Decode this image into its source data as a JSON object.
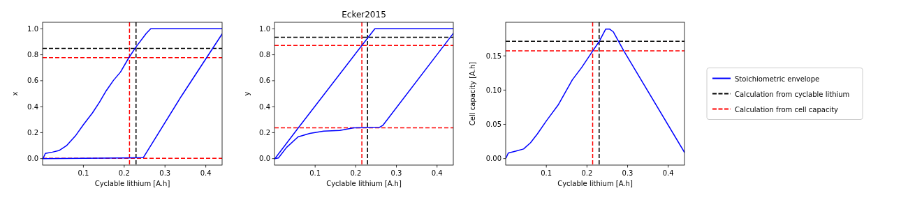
{
  "chart_data": [
    {
      "type": "line",
      "xlabel": "Cyclable lithium [A.h]",
      "ylabel": "x",
      "xlim": [
        0,
        0.44
      ],
      "ylim": [
        -0.05,
        1.05
      ],
      "xticks": [
        0.1,
        0.2,
        0.3,
        0.4
      ],
      "yticks": [
        {
          "value": 0,
          "label": "0.0"
        },
        0.2,
        0.4,
        0.6,
        0.8,
        {
          "value": 1,
          "label": "1.0"
        }
      ],
      "series": [
        {
          "color": "#0000ff",
          "x": [
            0.001,
            0.0067,
            0.024,
            0.041,
            0.0585,
            0.0816,
            0.1,
            0.122,
            0.139,
            0.156,
            0.174,
            0.191,
            0.211,
            0.228,
            0.254,
            0.265,
            0.44
          ],
          "values": [
            0,
            0.04,
            0.05,
            0.063,
            0.099,
            0.18,
            0.261,
            0.351,
            0.432,
            0.523,
            0.604,
            0.667,
            0.775,
            0.856,
            0.964,
            1.0,
            1.0
          ]
        },
        {
          "color": "#0000ff",
          "x": [
            0.001,
            0.2,
            0.247,
            0.34,
            0.44
          ],
          "values": [
            0,
            0.005,
            0.008,
            0.48,
            0.96
          ]
        }
      ],
      "ref_lines": [
        {
          "axis": "x",
          "value": 0.229,
          "color": "#000000",
          "line_style": "dashed"
        },
        {
          "axis": "y",
          "value": 0.849,
          "color": "#000000",
          "line_style": "dashed"
        },
        {
          "axis": "x",
          "value": 0.213,
          "color": "#ff0000",
          "line_style": "dashed"
        },
        {
          "axis": "y",
          "value": 0.778,
          "color": "#ff0000",
          "line_style": "dashed"
        },
        {
          "axis": "y",
          "value": 0.002,
          "color": "#ff0000",
          "line_style": "dashed"
        }
      ]
    },
    {
      "type": "line",
      "title": "Ecker2015",
      "xlabel": "Cyclable lithium [A.h]",
      "ylabel": "y",
      "xlim": [
        0,
        0.44
      ],
      "ylim": [
        -0.05,
        1.05
      ],
      "xticks": [
        0.1,
        0.2,
        0.3,
        0.4
      ],
      "yticks": [
        {
          "value": 0,
          "label": "0.0"
        },
        0.2,
        0.4,
        0.6,
        0.8,
        {
          "value": 1,
          "label": "1.0"
        }
      ],
      "series": [
        {
          "color": "#0000ff",
          "x": [
            0.001,
            0.057,
            0.215,
            0.247,
            0.44
          ],
          "values": [
            0,
            0.23,
            0.872,
            1.0,
            1.0
          ]
        },
        {
          "color": "#0000ff",
          "x": [
            0.001,
            0.0097,
            0.0297,
            0.058,
            0.087,
            0.121,
            0.161,
            0.195,
            0.258,
            0.267,
            0.44
          ],
          "values": [
            0,
            0.005,
            0.086,
            0.167,
            0.194,
            0.212,
            0.217,
            0.237,
            0.24,
            0.257,
            0.965
          ]
        }
      ],
      "ref_lines": [
        {
          "axis": "x",
          "value": 0.229,
          "color": "#000000",
          "line_style": "dashed"
        },
        {
          "axis": "y",
          "value": 0.934,
          "color": "#000000",
          "line_style": "dashed"
        },
        {
          "axis": "x",
          "value": 0.215,
          "color": "#ff0000",
          "line_style": "dashed"
        },
        {
          "axis": "y",
          "value": 0.872,
          "color": "#ff0000",
          "line_style": "dashed"
        },
        {
          "axis": "y",
          "value": 0.237,
          "color": "#ff0000",
          "line_style": "dashed"
        }
      ]
    },
    {
      "type": "line",
      "xlabel": "Cyclable lithium [A.h]",
      "ylabel": "Cell capacity [A.h]",
      "xlim": [
        0,
        0.44
      ],
      "ylim": [
        -0.0095,
        0.199
      ],
      "xticks": [
        0.1,
        0.2,
        0.3,
        0.4
      ],
      "yticks": [
        {
          "value": 0,
          "label": "0.00"
        },
        {
          "value": 0.05,
          "label": "0.05"
        },
        {
          "value": 0.1,
          "label": "0.10"
        },
        {
          "value": 0.15,
          "label": "0.15"
        }
      ],
      "legend": "right",
      "series": [
        {
          "name": "Stoichiometric envelope",
          "color": "#0000ff",
          "x": [
            0.001,
            0.0063,
            0.026,
            0.044,
            0.061,
            0.078,
            0.1,
            0.13,
            0.164,
            0.187,
            0.214,
            0.23,
            0.246,
            0.256,
            0.265,
            0.291,
            0.44
          ],
          "values": [
            0.001,
            0.008,
            0.011,
            0.014,
            0.023,
            0.036,
            0.055,
            0.079,
            0.115,
            0.133,
            0.157,
            0.171,
            0.189,
            0.189,
            0.185,
            0.157,
            0.009
          ]
        }
      ],
      "ref_lines": [
        {
          "axis": "x",
          "value": 0.23,
          "color": "#000000",
          "line_style": "dashed"
        },
        {
          "axis": "y",
          "value": 0.1714,
          "color": "#000000",
          "line_style": "dashed",
          "label": "Calculation from cyclable lithium"
        },
        {
          "axis": "x",
          "value": 0.214,
          "color": "#ff0000",
          "line_style": "dashed"
        },
        {
          "axis": "y",
          "value": 0.1574,
          "color": "#ff0000",
          "line_style": "dashed",
          "label": "Calculation from cell capacity"
        }
      ]
    }
  ]
}
